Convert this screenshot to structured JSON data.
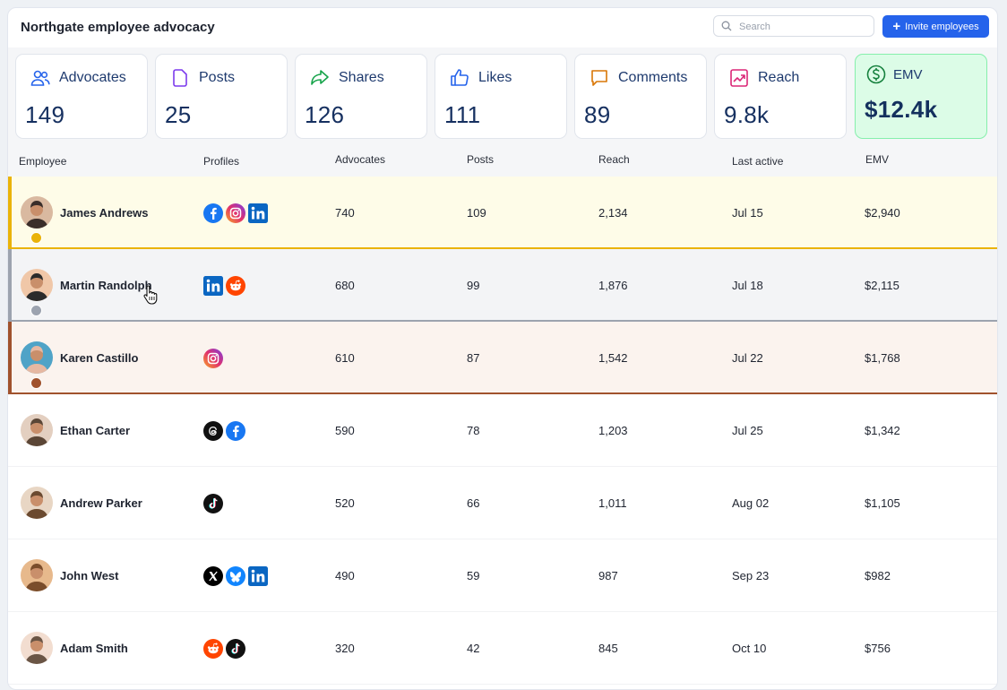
{
  "header": {
    "title": "Northgate employee advocacy",
    "search_placeholder": "Search",
    "invite_label": "Invite employees"
  },
  "stats": [
    {
      "label": "Advocates",
      "value": "149",
      "icon": "people-icon",
      "color": "#2563eb"
    },
    {
      "label": "Posts",
      "value": "25",
      "icon": "document-icon",
      "color": "#7c3aed"
    },
    {
      "label": "Shares",
      "value": "126",
      "icon": "share-icon",
      "color": "#16a34a"
    },
    {
      "label": "Likes",
      "value": "111",
      "icon": "thumbs-up-icon",
      "color": "#2563eb"
    },
    {
      "label": "Comments",
      "value": "89",
      "icon": "comment-icon",
      "color": "#d97706"
    },
    {
      "label": "Reach",
      "value": "9.8k",
      "icon": "trend-icon",
      "color": "#db2777"
    },
    {
      "label": "EMV",
      "value": "$12.4k",
      "icon": "dollar-icon",
      "color": "#15803d"
    }
  ],
  "table": {
    "columns": [
      "Employee",
      "Profiles",
      "Advocates",
      "Posts",
      "Reach",
      "Last active",
      "EMV"
    ],
    "rows": [
      {
        "name": "James Andrews",
        "profiles": [
          "facebook",
          "instagram",
          "linkedin"
        ],
        "advocates": "740",
        "posts": "109",
        "reach": "2,134",
        "last_active": "Jul 15",
        "emv": "$2,940",
        "rank": "gold"
      },
      {
        "name": "Martin Randolph",
        "profiles": [
          "linkedin",
          "reddit"
        ],
        "advocates": "680",
        "posts": "99",
        "reach": "1,876",
        "last_active": "Jul 18",
        "emv": "$2,115",
        "rank": "silver"
      },
      {
        "name": "Karen Castillo",
        "profiles": [
          "instagram"
        ],
        "advocates": "610",
        "posts": "87",
        "reach": "1,542",
        "last_active": "Jul 22",
        "emv": "$1,768",
        "rank": "bronze"
      },
      {
        "name": "Ethan Carter",
        "profiles": [
          "threads",
          "facebook"
        ],
        "advocates": "590",
        "posts": "78",
        "reach": "1,203",
        "last_active": "Jul 25",
        "emv": "$1,342",
        "rank": ""
      },
      {
        "name": "Andrew Parker",
        "profiles": [
          "tiktok"
        ],
        "advocates": "520",
        "posts": "66",
        "reach": "1,011",
        "last_active": "Aug 02",
        "emv": "$1,105",
        "rank": ""
      },
      {
        "name": "John West",
        "profiles": [
          "x",
          "bluesky",
          "linkedin"
        ],
        "advocates": "490",
        "posts": "59",
        "reach": "987",
        "last_active": "Sep 23",
        "emv": "$982",
        "rank": ""
      },
      {
        "name": "Adam Smith",
        "profiles": [
          "reddit",
          "tiktok"
        ],
        "advocates": "320",
        "posts": "42",
        "reach": "845",
        "last_active": "Oct 10",
        "emv": "$756",
        "rank": ""
      }
    ]
  },
  "colors": {
    "accent": "#2563eb",
    "gold_row": "#fefce8",
    "gold": "#eab308",
    "silver_row": "#f3f4f6",
    "silver": "#9ca3af",
    "bronze_row": "#fbf3ee",
    "bronze": "#a0522d"
  }
}
